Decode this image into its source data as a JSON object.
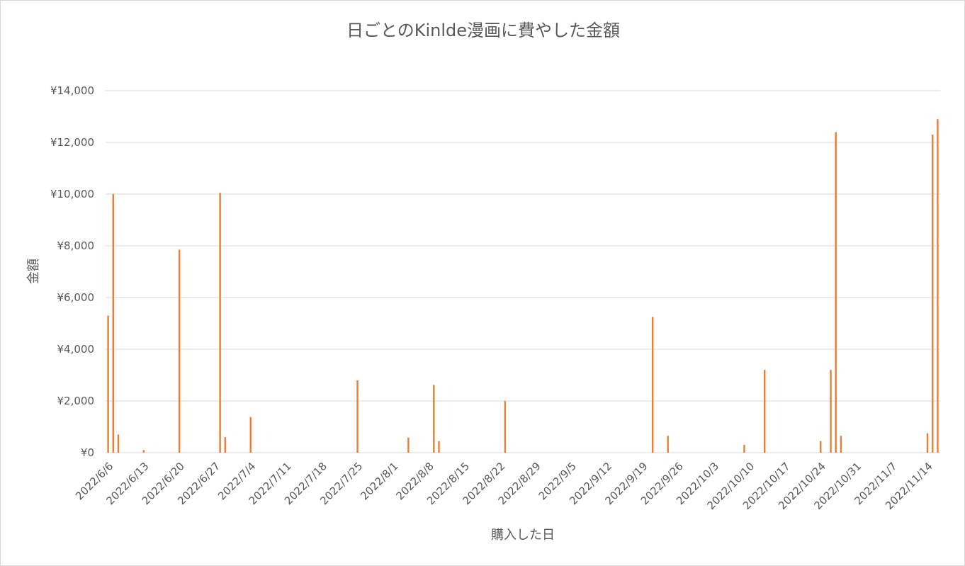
{
  "chart_data": {
    "type": "bar",
    "title": "日ごとのKinlde漫画に費やした金額",
    "xlabel": "購入した日",
    "ylabel": "金額",
    "ylim": [
      0,
      14000
    ],
    "y_ticks": [
      "¥0",
      "¥2,000",
      "¥4,000",
      "¥6,000",
      "¥8,000",
      "¥10,000",
      "¥12,000",
      "¥14,000"
    ],
    "x_range": [
      "2022/6/6",
      "2022/11/16"
    ],
    "x_ticks": [
      "2022/6/6",
      "2022/6/13",
      "2022/6/20",
      "2022/6/27",
      "2022/7/4",
      "2022/7/11",
      "2022/7/18",
      "2022/7/25",
      "2022/8/1",
      "2022/8/8",
      "2022/8/15",
      "2022/8/22",
      "2022/8/29",
      "2022/9/5",
      "2022/9/12",
      "2022/9/19",
      "2022/9/26",
      "2022/10/3",
      "2022/10/10",
      "2022/10/17",
      "2022/10/24",
      "2022/10/31",
      "2022/11/7",
      "2022/11/14"
    ],
    "series": [
      {
        "color": "#ed7d31",
        "points": [
          {
            "x": "2022/6/6",
            "y": 5300
          },
          {
            "x": "2022/6/7",
            "y": 10000
          },
          {
            "x": "2022/6/8",
            "y": 700
          },
          {
            "x": "2022/6/13",
            "y": 100
          },
          {
            "x": "2022/6/20",
            "y": 7850
          },
          {
            "x": "2022/6/28",
            "y": 10050
          },
          {
            "x": "2022/6/29",
            "y": 600
          },
          {
            "x": "2022/7/4",
            "y": 1380
          },
          {
            "x": "2022/7/25",
            "y": 2800
          },
          {
            "x": "2022/8/4",
            "y": 580
          },
          {
            "x": "2022/8/9",
            "y": 2620
          },
          {
            "x": "2022/8/10",
            "y": 450
          },
          {
            "x": "2022/8/23",
            "y": 2000
          },
          {
            "x": "2022/9/21",
            "y": 5250
          },
          {
            "x": "2022/9/24",
            "y": 650
          },
          {
            "x": "2022/10/9",
            "y": 300
          },
          {
            "x": "2022/10/13",
            "y": 3200
          },
          {
            "x": "2022/10/24",
            "y": 450
          },
          {
            "x": "2022/10/26",
            "y": 3200
          },
          {
            "x": "2022/10/27",
            "y": 12400
          },
          {
            "x": "2022/10/28",
            "y": 650
          },
          {
            "x": "2022/11/14",
            "y": 750
          },
          {
            "x": "2022/11/15",
            "y": 12300
          },
          {
            "x": "2022/11/16",
            "y": 12900
          }
        ]
      }
    ],
    "grid": true,
    "legend": "none"
  }
}
